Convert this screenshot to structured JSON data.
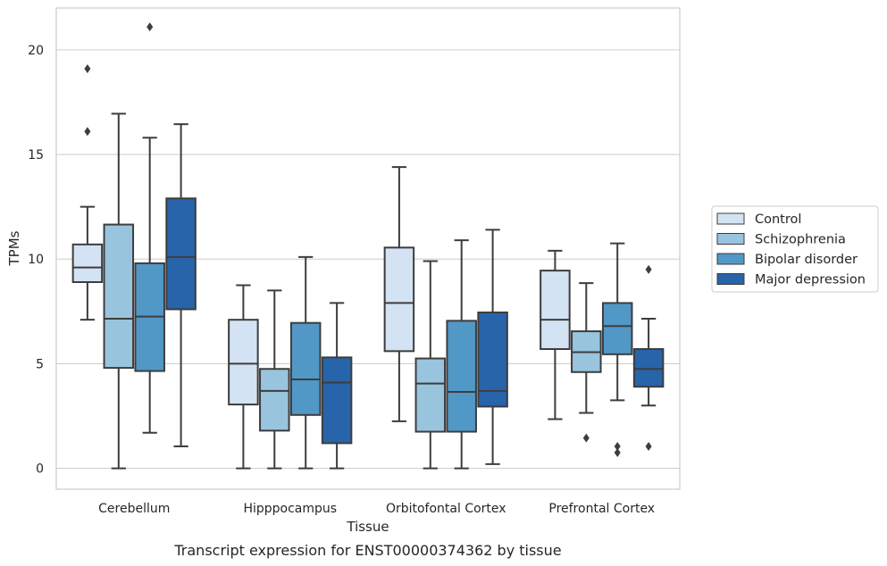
{
  "caption": "Transcript expression for ENST00000374362 by tissue",
  "chart_data": {
    "type": "box",
    "xlabel": "Tissue",
    "ylabel": "TPMs",
    "ylim": [
      -1,
      22
    ],
    "yticks": [
      0,
      5,
      10,
      15,
      20
    ],
    "grid": "horizontal",
    "legend_position": "right",
    "categories": [
      "Cerebellum",
      "Hipppocampus",
      "Orbitofontal Cortex",
      "Prefrontal Cortex"
    ],
    "series": [
      {
        "name": "Control",
        "color": "#d4e3f3",
        "boxes": [
          {
            "whisker_low": 7.1,
            "q1": 8.9,
            "median": 9.6,
            "q3": 10.7,
            "whisker_high": 12.5,
            "outliers": [
              16.1,
              19.1
            ]
          },
          {
            "whisker_low": 0.0,
            "q1": 3.05,
            "median": 5.0,
            "q3": 7.1,
            "whisker_high": 8.75,
            "outliers": []
          },
          {
            "whisker_low": 2.25,
            "q1": 5.6,
            "median": 7.9,
            "q3": 10.55,
            "whisker_high": 14.4,
            "outliers": []
          },
          {
            "whisker_low": 2.35,
            "q1": 5.7,
            "median": 7.1,
            "q3": 9.45,
            "whisker_high": 10.4,
            "outliers": []
          }
        ]
      },
      {
        "name": "Schizophrenia",
        "color": "#99c4de",
        "boxes": [
          {
            "whisker_low": 0.0,
            "q1": 4.8,
            "median": 7.15,
            "q3": 11.65,
            "whisker_high": 16.95,
            "outliers": []
          },
          {
            "whisker_low": 0.0,
            "q1": 1.8,
            "median": 3.7,
            "q3": 4.75,
            "whisker_high": 8.5,
            "outliers": []
          },
          {
            "whisker_low": 0.0,
            "q1": 1.75,
            "median": 4.05,
            "q3": 5.25,
            "whisker_high": 9.9,
            "outliers": []
          },
          {
            "whisker_low": 2.65,
            "q1": 4.6,
            "median": 5.55,
            "q3": 6.55,
            "whisker_high": 8.85,
            "outliers": [
              1.45
            ]
          }
        ]
      },
      {
        "name": "Bipolar disorder",
        "color": "#5198c7",
        "boxes": [
          {
            "whisker_low": 1.7,
            "q1": 4.65,
            "median": 7.25,
            "q3": 9.8,
            "whisker_high": 15.8,
            "outliers": [
              21.1
            ]
          },
          {
            "whisker_low": 0.0,
            "q1": 2.55,
            "median": 4.25,
            "q3": 6.95,
            "whisker_high": 10.1,
            "outliers": []
          },
          {
            "whisker_low": 0.0,
            "q1": 1.75,
            "median": 3.65,
            "q3": 7.05,
            "whisker_high": 10.9,
            "outliers": []
          },
          {
            "whisker_low": 3.25,
            "q1": 5.45,
            "median": 6.8,
            "q3": 7.9,
            "whisker_high": 10.75,
            "outliers": [
              0.75,
              1.05
            ]
          }
        ]
      },
      {
        "name": "Major depression",
        "color": "#2764a9",
        "boxes": [
          {
            "whisker_low": 1.05,
            "q1": 7.6,
            "median": 10.1,
            "q3": 12.9,
            "whisker_high": 16.45,
            "outliers": []
          },
          {
            "whisker_low": 0.0,
            "q1": 1.2,
            "median": 4.1,
            "q3": 5.3,
            "whisker_high": 7.9,
            "outliers": []
          },
          {
            "whisker_low": 0.2,
            "q1": 2.95,
            "median": 3.7,
            "q3": 7.45,
            "whisker_high": 11.4,
            "outliers": []
          },
          {
            "whisker_low": 3.0,
            "q1": 3.9,
            "median": 4.75,
            "q3": 5.7,
            "whisker_high": 7.15,
            "outliers": [
              1.05,
              9.5
            ]
          }
        ]
      }
    ]
  }
}
